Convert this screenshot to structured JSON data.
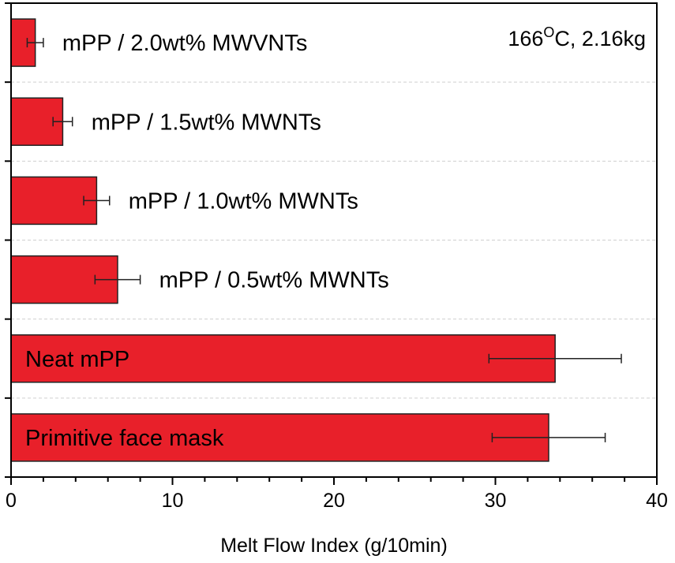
{
  "chart_data": {
    "type": "bar",
    "orientation": "horizontal",
    "categories": [
      "mPP / 2.0wt% MWVNTs",
      "mPP / 1.5wt% MWNTs",
      "mPP / 1.0wt% MWNTs",
      "mPP / 0.5wt% MWNTs",
      "Neat mPP",
      "Primitive face mask"
    ],
    "values": [
      1.5,
      3.2,
      5.3,
      6.6,
      33.7,
      33.3
    ],
    "errors": [
      0.5,
      0.6,
      0.8,
      1.4,
      4.1,
      3.5
    ],
    "annotation": {
      "main": "166",
      "sup": "O",
      "rest": "C, 2.16kg"
    },
    "xlabel": "Melt Flow Index (g/10min)",
    "ylabel": "",
    "xlim": [
      0,
      40
    ],
    "xticks": [
      "0",
      "10",
      "20",
      "30",
      "40"
    ],
    "grid": "horizontal-dashed",
    "bar_color": "#e8202a",
    "bar_edge_color": "#222222"
  }
}
